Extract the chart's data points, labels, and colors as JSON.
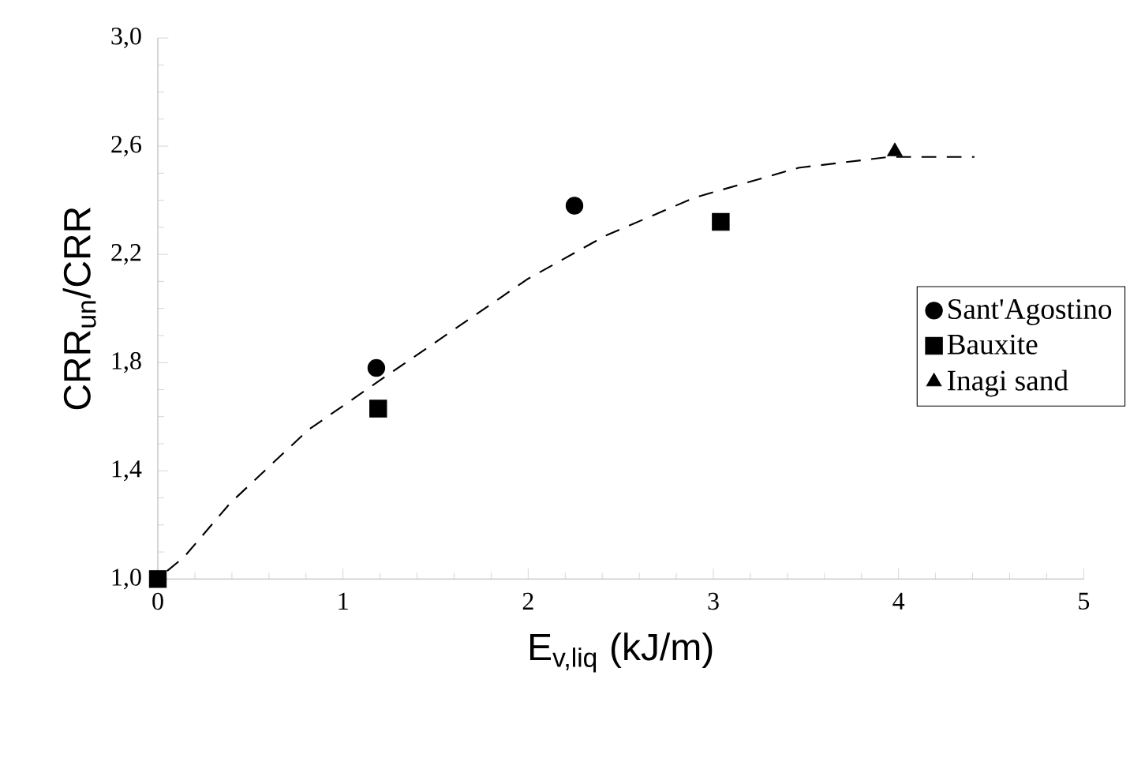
{
  "chart_data": {
    "type": "scatter",
    "xlabel": "E$_{v,liq}$  (kJ/m)",
    "ylabel": "CRR$_{un}$/CRR",
    "xlim": [
      0,
      5
    ],
    "xticks": [
      0,
      1,
      2,
      3,
      4,
      5
    ],
    "ylim": [
      1.0,
      3.0
    ],
    "yticks": [
      {
        "value": 1.0,
        "label": "1,0"
      },
      {
        "value": 1.4,
        "label": "1,4"
      },
      {
        "value": 1.8,
        "label": "1,8"
      },
      {
        "value": 2.2,
        "label": "2,2"
      },
      {
        "value": 2.6,
        "label": "2,6"
      },
      {
        "value": 3.0,
        "label": "3,0"
      }
    ],
    "legend": "right",
    "grid": false,
    "series": [
      {
        "name": "Sant'Agostino",
        "color": "#000000",
        "marker": "circle",
        "x": [
          1.18,
          2.25
        ],
        "values": [
          1.78,
          2.38
        ]
      },
      {
        "name": "Bauxite",
        "color": "#000000",
        "marker": "square",
        "x": [
          0,
          1.19,
          3.04
        ],
        "values": [
          1.0,
          1.63,
          2.32
        ]
      },
      {
        "name": "Inagi sand",
        "color": "#000000",
        "marker": "triangle",
        "x": [
          3.98
        ],
        "values": [
          2.58
        ]
      },
      {
        "type": "line",
        "color": "#000000",
        "line_style": "dashed",
        "marker": "none",
        "x": [
          0.05,
          0.14,
          0.39,
          0.81,
          1.19,
          2.0,
          2.42,
          2.9,
          3.46,
          3.95,
          4.41
        ],
        "values": [
          1.03,
          1.08,
          1.28,
          1.55,
          1.73,
          2.11,
          2.27,
          2.41,
          2.52,
          2.56,
          2.56
        ]
      }
    ]
  }
}
